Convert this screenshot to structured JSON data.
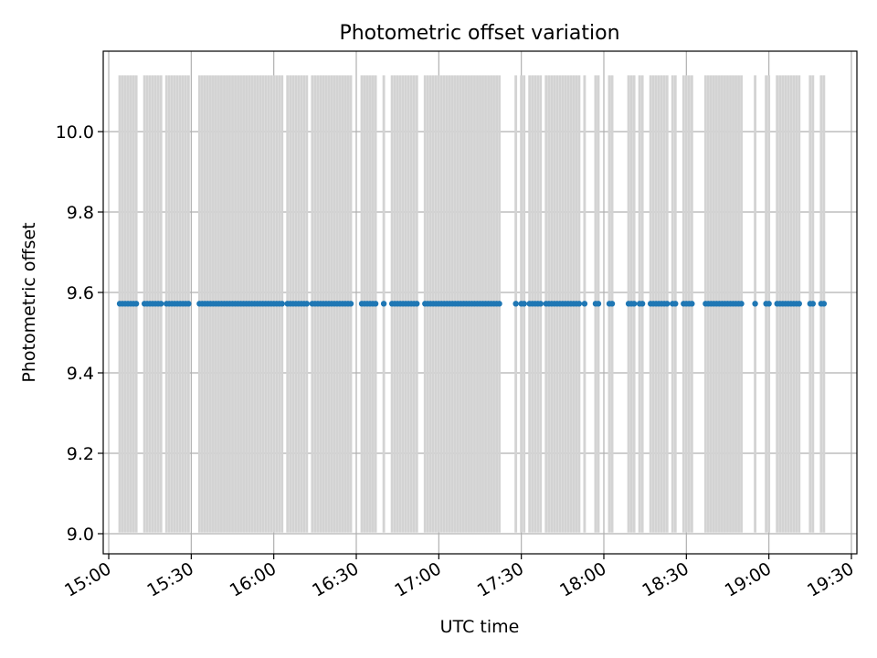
{
  "chart_data": {
    "type": "scatter",
    "title": "Photometric offset variation",
    "xlabel": "UTC time",
    "ylabel": "Photometric offset",
    "xlim": [
      "14:58",
      "19:32"
    ],
    "ylim": [
      8.95,
      10.2
    ],
    "xticks": [
      "15:00",
      "15:30",
      "16:00",
      "16:30",
      "17:00",
      "17:30",
      "18:00",
      "18:30",
      "19:00",
      "19:30"
    ],
    "yticks": [
      "9.0",
      "9.2",
      "9.4",
      "9.6",
      "9.8",
      "10.0"
    ],
    "grid": true,
    "colors": {
      "points": "#1f77b4",
      "error_bars": "#d3d3d3",
      "grid": "#b0b0b0"
    },
    "error_band": {
      "low": 9.003,
      "high": 10.14
    },
    "series": [
      {
        "y": 9.572,
        "x": [
          "15:04",
          "15:05",
          "15:06",
          "15:07",
          "15:08",
          "15:09",
          "15:10",
          "15:13",
          "15:14",
          "15:15",
          "15:16",
          "15:17",
          "15:18",
          "15:19",
          "15:21",
          "15:22",
          "15:23",
          "15:24",
          "15:25",
          "15:26",
          "15:27",
          "15:28",
          "15:29",
          "15:33",
          "15:34",
          "15:35",
          "15:36",
          "15:37",
          "15:38",
          "15:39",
          "15:40",
          "15:41",
          "15:42",
          "15:43",
          "15:44",
          "15:45",
          "15:46",
          "15:47",
          "15:48",
          "15:49",
          "15:50",
          "15:51",
          "15:52",
          "15:53",
          "15:54",
          "15:55",
          "15:56",
          "15:57",
          "15:58",
          "15:59",
          "16:00",
          "16:01",
          "16:02",
          "16:03",
          "16:05",
          "16:06",
          "16:07",
          "16:08",
          "16:09",
          "16:10",
          "16:11",
          "16:12",
          "16:14",
          "16:15",
          "16:16",
          "16:17",
          "16:18",
          "16:19",
          "16:20",
          "16:21",
          "16:22",
          "16:23",
          "16:24",
          "16:25",
          "16:26",
          "16:27",
          "16:28",
          "16:32",
          "16:33",
          "16:34",
          "16:35",
          "16:36",
          "16:37",
          "16:40",
          "16:43",
          "16:44",
          "16:45",
          "16:46",
          "16:47",
          "16:48",
          "16:49",
          "16:50",
          "16:51",
          "16:52",
          "16:55",
          "16:56",
          "16:57",
          "16:58",
          "16:59",
          "17:00",
          "17:01",
          "17:02",
          "17:03",
          "17:04",
          "17:05",
          "17:06",
          "17:07",
          "17:08",
          "17:09",
          "17:10",
          "17:11",
          "17:12",
          "17:13",
          "17:14",
          "17:15",
          "17:16",
          "17:17",
          "17:18",
          "17:19",
          "17:20",
          "17:21",
          "17:22",
          "17:28",
          "17:30",
          "17:31",
          "17:33",
          "17:34",
          "17:35",
          "17:36",
          "17:37",
          "17:39",
          "17:40",
          "17:41",
          "17:42",
          "17:43",
          "17:44",
          "17:45",
          "17:46",
          "17:47",
          "17:48",
          "17:49",
          "17:50",
          "17:51",
          "17:53",
          "17:57",
          "17:58",
          "18:02",
          "18:03",
          "18:09",
          "18:10",
          "18:11",
          "18:13",
          "18:14",
          "18:17",
          "18:18",
          "18:19",
          "18:20",
          "18:21",
          "18:22",
          "18:23",
          "18:25",
          "18:26",
          "18:29",
          "18:30",
          "18:31",
          "18:32",
          "18:37",
          "18:38",
          "18:39",
          "18:40",
          "18:41",
          "18:42",
          "18:43",
          "18:44",
          "18:45",
          "18:46",
          "18:47",
          "18:48",
          "18:49",
          "18:50",
          "18:55",
          "18:59",
          "19:00",
          "19:03",
          "19:04",
          "19:05",
          "19:06",
          "19:07",
          "19:08",
          "19:09",
          "19:10",
          "19:11",
          "19:15",
          "19:16",
          "19:19",
          "19:20"
        ]
      }
    ]
  }
}
